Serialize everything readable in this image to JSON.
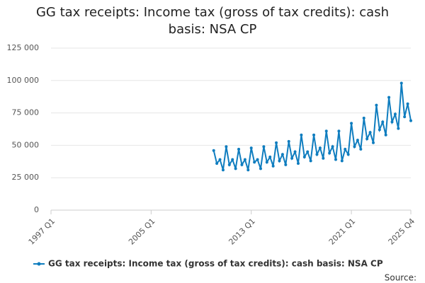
{
  "chart_data": {
    "type": "line",
    "title": "GG tax receipts: Income tax (gross of tax credits): cash basis: NSA CP",
    "categories": [
      "1997 Q1",
      null,
      null,
      null,
      null,
      null,
      null,
      null,
      null,
      null,
      null,
      null,
      null,
      null,
      null,
      null,
      null,
      null,
      null,
      null,
      null,
      null,
      null,
      null,
      null,
      null,
      null,
      null,
      null,
      null,
      null,
      null,
      "2005 Q1",
      null,
      null,
      null,
      null,
      null,
      null,
      null,
      null,
      null,
      null,
      null,
      null,
      null,
      null,
      null,
      null,
      null,
      null,
      null,
      null,
      null,
      null,
      null,
      null,
      null,
      null,
      null,
      null,
      null,
      null,
      null,
      "2013 Q1",
      null,
      null,
      null,
      null,
      null,
      null,
      null,
      null,
      null,
      null,
      null,
      null,
      null,
      null,
      null,
      null,
      null,
      null,
      null,
      null,
      null,
      null,
      null,
      null,
      null,
      null,
      null,
      null,
      null,
      null,
      null,
      "2021 Q1",
      null,
      null,
      null,
      null,
      null,
      null,
      null,
      null,
      null,
      null,
      null,
      null,
      null,
      null,
      null,
      null,
      null,
      null,
      "2025 Q4"
    ],
    "series": [
      {
        "name": "GG tax receipts: Income tax (gross of tax credits): cash basis: NSA CP",
        "color": "#0f7dbf",
        "values": [
          null,
          null,
          null,
          null,
          null,
          null,
          null,
          null,
          null,
          null,
          null,
          null,
          null,
          null,
          null,
          null,
          null,
          null,
          null,
          null,
          null,
          null,
          null,
          null,
          null,
          null,
          null,
          null,
          null,
          null,
          null,
          null,
          null,
          null,
          null,
          null,
          null,
          null,
          null,
          null,
          null,
          null,
          null,
          null,
          null,
          null,
          null,
          null,
          null,
          null,
          null,
          null,
          46000,
          36000,
          39000,
          31000,
          49000,
          35000,
          39000,
          32000,
          47000,
          35000,
          39000,
          31000,
          48000,
          37000,
          39000,
          32000,
          49000,
          37000,
          41000,
          34000,
          52000,
          38000,
          43000,
          35000,
          53000,
          40000,
          45000,
          36000,
          58000,
          41000,
          45000,
          38000,
          58000,
          43000,
          48000,
          40000,
          61000,
          44000,
          49000,
          39000,
          61000,
          38000,
          47000,
          43000,
          67000,
          49000,
          54000,
          47000,
          71000,
          55000,
          60000,
          52000,
          81000,
          62000,
          68000,
          58000,
          87000,
          68000,
          74000,
          63000,
          98000,
          72000,
          82000,
          69000
        ]
      }
    ],
    "ylim": [
      0,
      125000
    ],
    "yticks": [
      0,
      {
        "value": 25000,
        "label": "25 000"
      },
      {
        "value": 50000,
        "label": "50 000"
      },
      {
        "value": 75000,
        "label": "75 000"
      },
      {
        "value": 100000,
        "label": "100 000"
      },
      {
        "value": 125000,
        "label": "125 000"
      }
    ],
    "grid": true,
    "source": "Source:"
  }
}
